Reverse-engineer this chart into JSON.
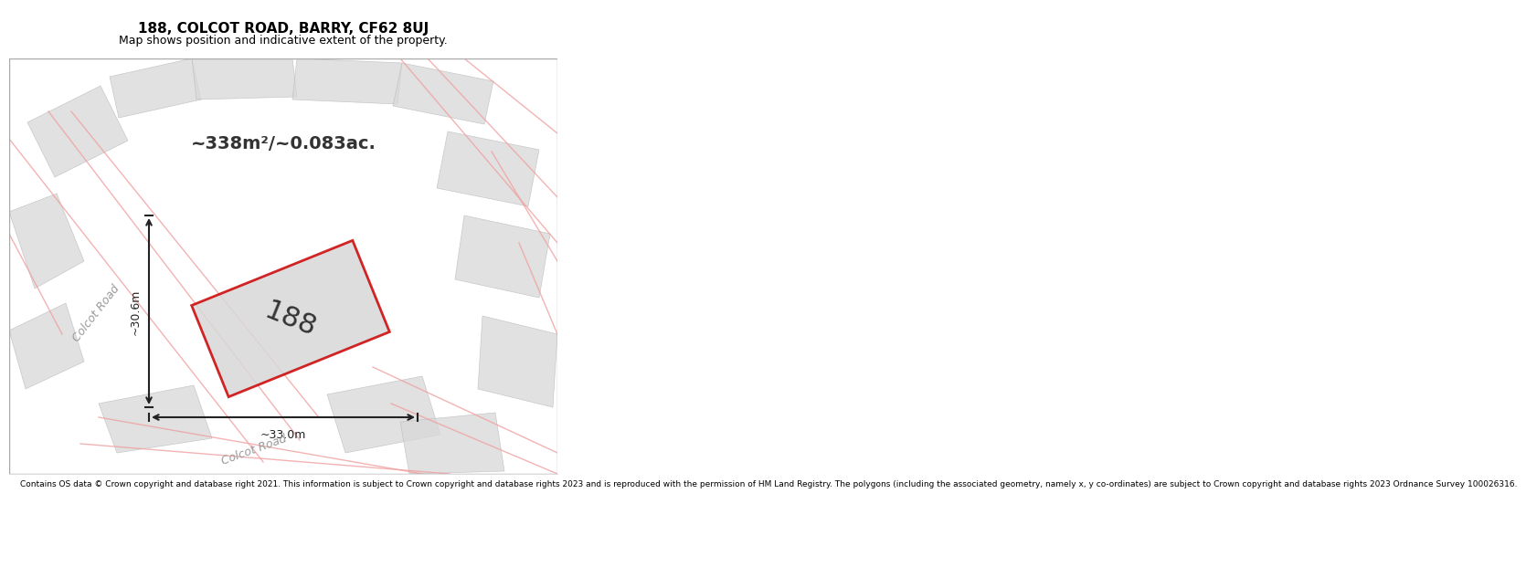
{
  "title_line1": "188, COLCOT ROAD, BARRY, CF62 8UJ",
  "title_line2": "Map shows position and indicative extent of the property.",
  "footer_text": "Contains OS data © Crown copyright and database right 2021. This information is subject to Crown copyright and database rights 2023 and is reproduced with the permission of HM Land Registry. The polygons (including the associated geometry, namely x, y co-ordinates) are subject to Crown copyright and database rights 2023 Ordnance Survey 100026316.",
  "bg_color": "#f0f0f0",
  "map_bg_color": "#f0f0ec",
  "title_bg": "#ffffff",
  "footer_bg": "#ffffff",
  "area_text": "~338m²/~0.083ac.",
  "dim_h_text": "~30.6m",
  "dim_w_text": "~33.0m",
  "label_188": "188",
  "road_color": "#f0a0a0",
  "building_fill": "#d8d8d8",
  "building_edge": "#bbbbbb",
  "main_plot_fill": "#d8d8d8",
  "main_plot_edge": "#cc0000",
  "dim_color": "#222222",
  "colcot_road_color": "#999999"
}
